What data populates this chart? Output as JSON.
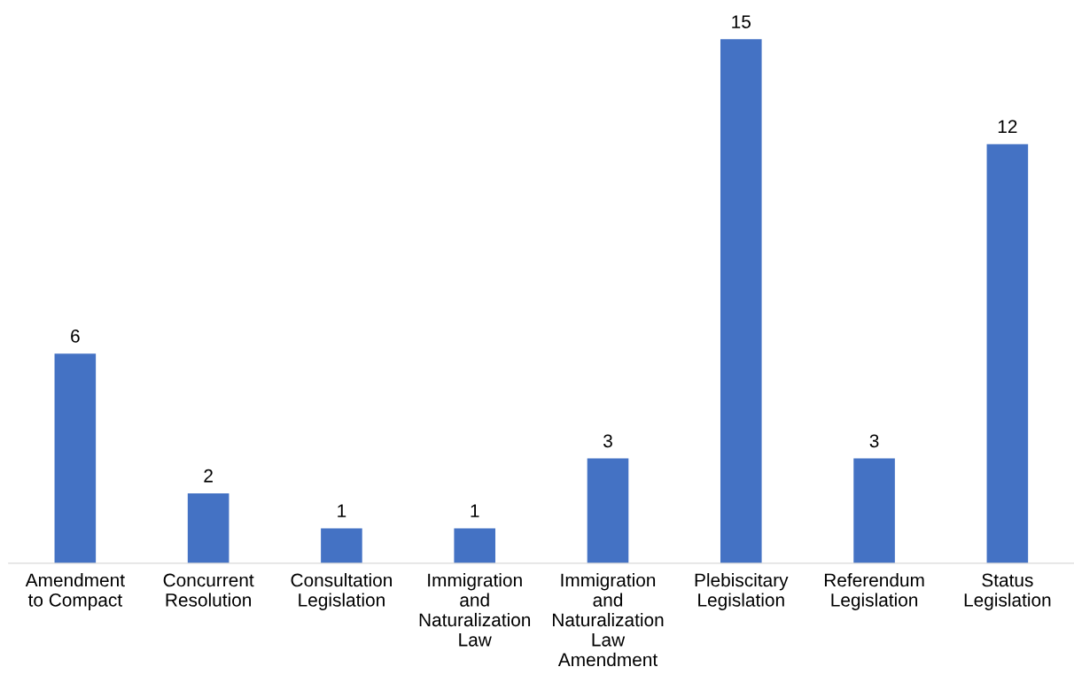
{
  "chart_data": {
    "type": "bar",
    "categories": [
      "Amendment\nto Compact",
      "Concurrent\nResolution",
      "Consultation\nLegislation",
      "Immigration\nand\nNaturalization\nLaw",
      "Immigration\nand\nNaturalization\nLaw\nAmendment",
      "Plebiscitary\nLegislation",
      "Referendum\nLegislation",
      "Status\nLegislation"
    ],
    "values": [
      6,
      2,
      1,
      1,
      3,
      15,
      3,
      12
    ],
    "color": "#4472c4",
    "data_labels": true,
    "grid": false,
    "legend": false
  }
}
